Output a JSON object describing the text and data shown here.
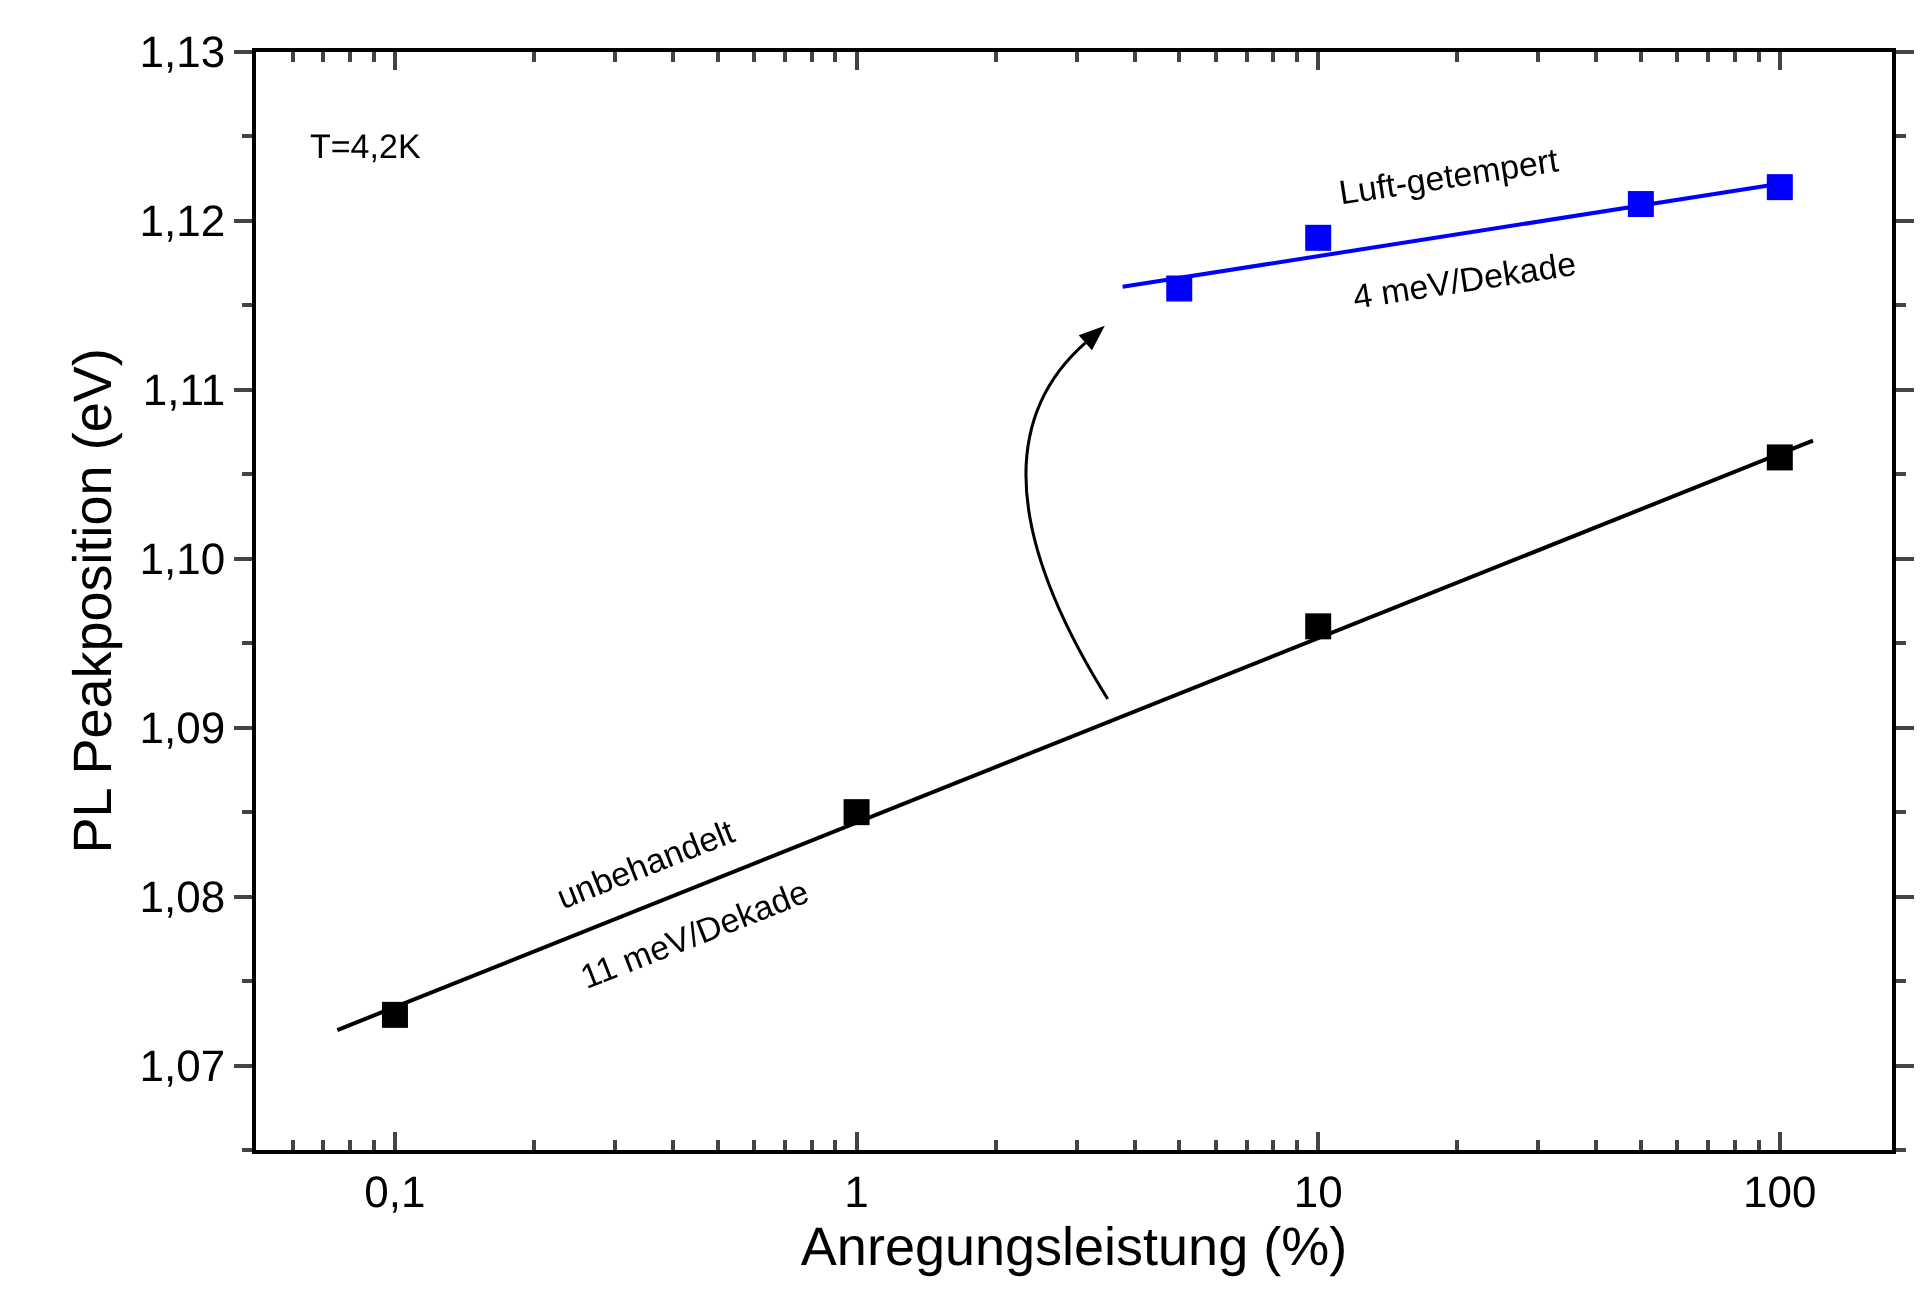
{
  "chart_data": {
    "type": "scatter",
    "xlabel": "Anregungsleistung (%)",
    "ylabel": "PL Peakposition (eV)",
    "log": "x",
    "xlim": [
      0.05,
      175
    ],
    "xticks": [
      {
        "value": 0.1,
        "label": "0,1"
      },
      1,
      10,
      100
    ],
    "ylim": [
      1.065,
      1.13
    ],
    "yticks": [
      {
        "value": 1.07,
        "label": "1,07"
      },
      {
        "value": 1.08,
        "label": "1,08"
      },
      {
        "value": 1.09,
        "label": "1,09"
      },
      {
        "value": 1.1,
        "label": "1,10"
      },
      {
        "value": 1.11,
        "label": "1,11"
      },
      {
        "value": 1.12,
        "label": "1,12"
      },
      {
        "value": 1.13,
        "label": "1,13"
      }
    ],
    "grid": false,
    "series": [
      {
        "type": "scatter",
        "marker": "square",
        "color": "#000000",
        "x": [
          0.1,
          1,
          10,
          100
        ],
        "values": [
          1.073,
          1.085,
          1.096,
          1.106
        ]
      },
      {
        "type": "scatter",
        "marker": "square",
        "color": "#0000ff",
        "x": [
          5,
          10,
          50,
          100
        ],
        "values": [
          1.116,
          1.119,
          1.121,
          1.122
        ]
      },
      {
        "type": "line",
        "marker": "none",
        "color": "#000000",
        "x": [
          0.075,
          118
        ],
        "values": [
          1.0721,
          1.107
        ]
      },
      {
        "type": "line",
        "marker": "none",
        "color": "#0000ff",
        "x": [
          3.77,
          100
        ],
        "values": [
          1.1161,
          1.1222
        ]
      }
    ],
    "annotations": [
      "T=4,2K",
      "unbehandelt",
      "11 meV/Dekade",
      "Luft-getempert",
      "4 meV/Dekade"
    ]
  }
}
